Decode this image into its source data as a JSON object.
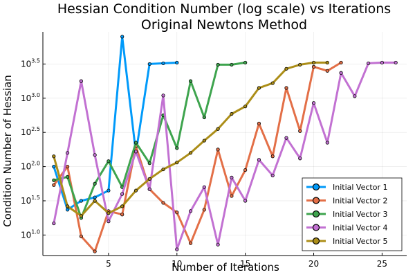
{
  "chart_data": {
    "type": "line",
    "title": "Hessian Condition Number (log scale) vs Iterations",
    "subtitle": "Original Newtons Method",
    "xlabel": "Number of Iterations",
    "ylabel": "Condition Number of Hessian",
    "xlim": [
      0.2,
      26.8
    ],
    "ylim": [
      0.7,
      3.97
    ],
    "y_scale": "log10",
    "grid": true,
    "legend_position": "bottom-right",
    "x_ticks": [
      5,
      10,
      15,
      20,
      25
    ],
    "y_ticks": [
      {
        "value": 1.0,
        "base": "10",
        "exp": "1.0"
      },
      {
        "value": 1.5,
        "base": "10",
        "exp": "1.5"
      },
      {
        "value": 2.0,
        "base": "10",
        "exp": "2.0"
      },
      {
        "value": 2.5,
        "base": "10",
        "exp": "2.5"
      },
      {
        "value": 3.0,
        "base": "10",
        "exp": "3.0"
      },
      {
        "value": 3.5,
        "base": "10",
        "exp": "3.5"
      }
    ],
    "series": [
      {
        "name": "Initial Vector 1",
        "color": "#009AFA",
        "x": [
          1,
          2,
          3,
          4,
          5,
          6,
          7,
          8,
          9,
          10
        ],
        "y": [
          2.0,
          1.37,
          1.5,
          1.55,
          1.65,
          3.9,
          2.2,
          3.5,
          3.51,
          3.52
        ]
      },
      {
        "name": "Initial Vector 2",
        "color": "#E36F47",
        "x": [
          1,
          2,
          3,
          4,
          5,
          6,
          7,
          8,
          9,
          10,
          11,
          12,
          13,
          14,
          15,
          16,
          17,
          18,
          19,
          20,
          21,
          22
        ],
        "y": [
          1.73,
          2.0,
          0.98,
          0.76,
          1.35,
          1.3,
          2.3,
          1.67,
          1.47,
          1.33,
          0.88,
          1.37,
          2.25,
          1.57,
          1.95,
          2.63,
          2.15,
          3.15,
          2.52,
          3.46,
          3.4,
          3.52
        ]
      },
      {
        "name": "Initial Vector 3",
        "color": "#3EA44E",
        "x": [
          1,
          2,
          3,
          4,
          5,
          6,
          7,
          8,
          9,
          10,
          11,
          12,
          13,
          14,
          15
        ],
        "y": [
          1.8,
          1.85,
          1.25,
          1.75,
          2.08,
          1.7,
          2.35,
          2.05,
          2.75,
          2.27,
          3.25,
          2.72,
          3.49,
          3.49,
          3.52
        ]
      },
      {
        "name": "Initial Vector 4",
        "color": "#C271D2",
        "x": [
          1,
          2,
          3,
          4,
          5,
          6,
          7,
          8,
          9,
          10,
          11,
          12,
          13,
          14,
          15,
          16,
          17,
          18,
          19,
          20,
          21,
          22,
          23,
          24,
          25,
          26
        ],
        "y": [
          1.17,
          2.2,
          3.25,
          2.17,
          1.2,
          1.6,
          2.22,
          1.67,
          3.04,
          0.79,
          1.35,
          1.7,
          0.86,
          1.84,
          1.5,
          2.1,
          1.87,
          2.42,
          2.12,
          2.93,
          2.35,
          3.37,
          3.03,
          3.51,
          3.52,
          3.52
        ]
      },
      {
        "name": "Initial Vector 5",
        "color": "#AC8E18",
        "x": [
          1,
          2,
          3,
          4,
          5,
          6,
          7,
          8,
          9,
          10,
          11,
          12,
          13,
          14,
          15,
          16,
          17,
          18,
          19,
          20,
          21
        ],
        "y": [
          2.15,
          1.42,
          1.28,
          1.5,
          1.32,
          1.42,
          1.65,
          1.82,
          1.96,
          2.06,
          2.2,
          2.38,
          2.55,
          2.77,
          2.88,
          3.15,
          3.22,
          3.43,
          3.49,
          3.52,
          3.52
        ]
      }
    ]
  }
}
